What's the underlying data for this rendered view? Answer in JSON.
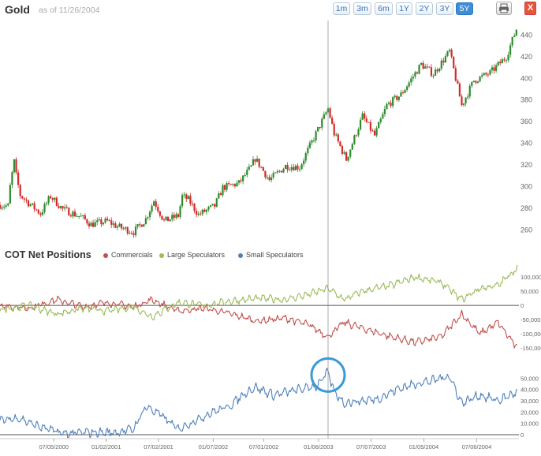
{
  "header": {
    "title": "Gold",
    "as_of": "as of 11/26/2004",
    "ranges": [
      "1m",
      "3m",
      "6m",
      "1Y",
      "2Y",
      "3Y",
      "5Y"
    ],
    "active_range": "5Y",
    "close_label": "X"
  },
  "colors": {
    "commercials": "#c0504d",
    "large_speculators": "#9bbb59",
    "small_speculators": "#4f81bd",
    "candle_up": "#2e8b2e",
    "candle_down": "#d42a2a",
    "highlight_circle": "#3a9bd5"
  },
  "cot_legend": {
    "title": "COT Net Positions",
    "items": [
      "Commercials",
      "Large Speculators",
      "Small Speculators"
    ]
  },
  "chart_data": [
    {
      "type": "candlestick",
      "title": "Gold",
      "ylim": [
        250,
        452
      ],
      "yticks": [
        260,
        280,
        300,
        320,
        340,
        360,
        380,
        400,
        420,
        440
      ],
      "x_range": [
        "2000-01-01",
        "2004-11-26"
      ],
      "weekly_closes": [
        {
          "date": "2000-01-01",
          "close": 283
        },
        {
          "date": "2000-01-29",
          "close": 282
        },
        {
          "date": "2000-02-05",
          "close": 300
        },
        {
          "date": "2000-02-12",
          "close": 312
        },
        {
          "date": "2000-02-19",
          "close": 323
        },
        {
          "date": "2000-02-26",
          "close": 310
        },
        {
          "date": "2000-03-11",
          "close": 292
        },
        {
          "date": "2000-04-08",
          "close": 285
        },
        {
          "date": "2000-05-20",
          "close": 275
        },
        {
          "date": "2000-06-24",
          "close": 291
        },
        {
          "date": "2000-08-05",
          "close": 279
        },
        {
          "date": "2000-10-07",
          "close": 272
        },
        {
          "date": "2000-11-11",
          "close": 265
        },
        {
          "date": "2001-01-06",
          "close": 268
        },
        {
          "date": "2001-02-10",
          "close": 263
        },
        {
          "date": "2001-04-07",
          "close": 258
        },
        {
          "date": "2001-05-19",
          "close": 270
        },
        {
          "date": "2001-06-16",
          "close": 287
        },
        {
          "date": "2001-07-21",
          "close": 268
        },
        {
          "date": "2001-09-08",
          "close": 273
        },
        {
          "date": "2001-09-22",
          "close": 291
        },
        {
          "date": "2001-10-13",
          "close": 288
        },
        {
          "date": "2001-11-17",
          "close": 274
        },
        {
          "date": "2002-01-12",
          "close": 282
        },
        {
          "date": "2002-02-09",
          "close": 299
        },
        {
          "date": "2002-04-06",
          "close": 303
        },
        {
          "date": "2002-05-18",
          "close": 318
        },
        {
          "date": "2002-06-01",
          "close": 326
        },
        {
          "date": "2002-07-20",
          "close": 306
        },
        {
          "date": "2002-09-14",
          "close": 319
        },
        {
          "date": "2002-11-02",
          "close": 318
        },
        {
          "date": "2002-12-21",
          "close": 345
        },
        {
          "date": "2003-02-08",
          "close": 372
        },
        {
          "date": "2003-03-01",
          "close": 349
        },
        {
          "date": "2003-04-12",
          "close": 325
        },
        {
          "date": "2003-06-07",
          "close": 365
        },
        {
          "date": "2003-07-19",
          "close": 347
        },
        {
          "date": "2003-08-30",
          "close": 375
        },
        {
          "date": "2003-10-18",
          "close": 385
        },
        {
          "date": "2003-12-27",
          "close": 413
        },
        {
          "date": "2004-02-07",
          "close": 404
        },
        {
          "date": "2004-04-03",
          "close": 425
        },
        {
          "date": "2004-05-15",
          "close": 375
        },
        {
          "date": "2004-06-26",
          "close": 398
        },
        {
          "date": "2004-08-21",
          "close": 405
        },
        {
          "date": "2004-10-16",
          "close": 420
        },
        {
          "date": "2004-11-26",
          "close": 450
        }
      ]
    },
    {
      "type": "line",
      "title": "COT Net Positions",
      "ylim": [
        -180000,
        150000
      ],
      "yticks": [
        100000,
        50000,
        0,
        -50000,
        -100000,
        -150000
      ],
      "ytick_labels": [
        "100,000",
        "50,000",
        "0",
        "-50,000",
        "-100,000",
        "-150,000"
      ],
      "series": [
        {
          "name": "Commercials",
          "points": [
            {
              "date": "2000-01-01",
              "value": 0
            },
            {
              "date": "2000-04-08",
              "value": -10000
            },
            {
              "date": "2000-07-15",
              "value": 20000
            },
            {
              "date": "2000-10-14",
              "value": -5000
            },
            {
              "date": "2001-01-06",
              "value": 10000
            },
            {
              "date": "2001-04-07",
              "value": -5000
            },
            {
              "date": "2001-06-09",
              "value": 20000
            },
            {
              "date": "2001-09-08",
              "value": -20000
            },
            {
              "date": "2001-12-08",
              "value": -10000
            },
            {
              "date": "2002-03-09",
              "value": -30000
            },
            {
              "date": "2002-06-08",
              "value": -55000
            },
            {
              "date": "2002-09-14",
              "value": -45000
            },
            {
              "date": "2002-12-07",
              "value": -70000
            },
            {
              "date": "2003-02-08",
              "value": -110000
            },
            {
              "date": "2003-04-05",
              "value": -60000
            },
            {
              "date": "2003-06-07",
              "value": -80000
            },
            {
              "date": "2003-09-13",
              "value": -110000
            },
            {
              "date": "2003-12-06",
              "value": -130000
            },
            {
              "date": "2004-03-06",
              "value": -110000
            },
            {
              "date": "2004-05-15",
              "value": -30000
            },
            {
              "date": "2004-07-17",
              "value": -100000
            },
            {
              "date": "2004-09-18",
              "value": -60000
            },
            {
              "date": "2004-11-26",
              "value": -155000
            }
          ]
        },
        {
          "name": "Large Speculators",
          "points": [
            {
              "date": "2000-01-01",
              "value": -15000
            },
            {
              "date": "2000-04-08",
              "value": 0
            },
            {
              "date": "2000-07-15",
              "value": -30000
            },
            {
              "date": "2000-10-14",
              "value": -10000
            },
            {
              "date": "2001-01-06",
              "value": -20000
            },
            {
              "date": "2001-04-07",
              "value": -5000
            },
            {
              "date": "2001-06-09",
              "value": -40000
            },
            {
              "date": "2001-09-08",
              "value": 10000
            },
            {
              "date": "2001-12-08",
              "value": 0
            },
            {
              "date": "2002-03-09",
              "value": 15000
            },
            {
              "date": "2002-06-08",
              "value": 25000
            },
            {
              "date": "2002-09-14",
              "value": 20000
            },
            {
              "date": "2002-12-07",
              "value": 40000
            },
            {
              "date": "2003-02-08",
              "value": 60000
            },
            {
              "date": "2003-04-05",
              "value": 20000
            },
            {
              "date": "2003-06-07",
              "value": 50000
            },
            {
              "date": "2003-09-13",
              "value": 70000
            },
            {
              "date": "2003-12-06",
              "value": 100000
            },
            {
              "date": "2004-03-06",
              "value": 80000
            },
            {
              "date": "2004-05-15",
              "value": 20000
            },
            {
              "date": "2004-07-17",
              "value": 60000
            },
            {
              "date": "2004-09-18",
              "value": 70000
            },
            {
              "date": "2004-11-26",
              "value": 135000
            }
          ]
        }
      ]
    },
    {
      "type": "line",
      "title": "",
      "ylim": [
        0,
        60000
      ],
      "yticks": [
        50000,
        40000,
        30000,
        20000,
        10000,
        0
      ],
      "ytick_labels": [
        "50,000",
        "40,000",
        "30,000",
        "20,000",
        "10,000",
        "0"
      ],
      "series": [
        {
          "name": "Small Speculators",
          "points": [
            {
              "date": "2000-01-01",
              "value": 12000
            },
            {
              "date": "2000-03-04",
              "value": 15000
            },
            {
              "date": "2000-05-06",
              "value": 8000
            },
            {
              "date": "2000-08-05",
              "value": 1000
            },
            {
              "date": "2000-11-04",
              "value": 2000
            },
            {
              "date": "2001-02-03",
              "value": 2000
            },
            {
              "date": "2001-04-07",
              "value": 5000
            },
            {
              "date": "2001-05-19",
              "value": 25000
            },
            {
              "date": "2001-07-07",
              "value": 18000
            },
            {
              "date": "2001-09-08",
              "value": 5000
            },
            {
              "date": "2001-11-03",
              "value": 12000
            },
            {
              "date": "2002-01-05",
              "value": 20000
            },
            {
              "date": "2002-03-02",
              "value": 25000
            },
            {
              "date": "2002-05-04",
              "value": 38000
            },
            {
              "date": "2002-06-01",
              "value": 42000
            },
            {
              "date": "2002-08-03",
              "value": 35000
            },
            {
              "date": "2002-11-02",
              "value": 40000
            },
            {
              "date": "2002-12-28",
              "value": 43000
            },
            {
              "date": "2003-02-08",
              "value": 55000
            },
            {
              "date": "2003-03-01",
              "value": 38000
            },
            {
              "date": "2003-04-05",
              "value": 28000
            },
            {
              "date": "2003-06-07",
              "value": 30000
            },
            {
              "date": "2003-08-02",
              "value": 32000
            },
            {
              "date": "2003-10-04",
              "value": 40000
            },
            {
              "date": "2003-12-06",
              "value": 45000
            },
            {
              "date": "2004-02-07",
              "value": 48000
            },
            {
              "date": "2004-04-03",
              "value": 52000
            },
            {
              "date": "2004-05-15",
              "value": 28000
            },
            {
              "date": "2004-07-17",
              "value": 35000
            },
            {
              "date": "2004-09-18",
              "value": 30000
            },
            {
              "date": "2004-11-26",
              "value": 38000
            }
          ]
        }
      ]
    }
  ],
  "x_axis": {
    "ticks": [
      {
        "date": "2000-07-05",
        "label": "07/05/2000"
      },
      {
        "date": "2001-01-02",
        "label": "01/02/2001"
      },
      {
        "date": "2001-07-02",
        "label": "07/02/2001"
      },
      {
        "date": "2002-01-07",
        "label": "01/07/2002"
      },
      {
        "date": "2002-07-01",
        "label": "07/01/2002"
      },
      {
        "date": "2003-01-06",
        "label": "01/06/2003"
      },
      {
        "date": "2003-07-07",
        "label": "07/07/2003"
      },
      {
        "date": "2004-01-05",
        "label": "01/05/2004"
      },
      {
        "date": "2004-07-06",
        "label": "07/06/2004"
      }
    ],
    "crosshair_date": "2003-02-08"
  }
}
